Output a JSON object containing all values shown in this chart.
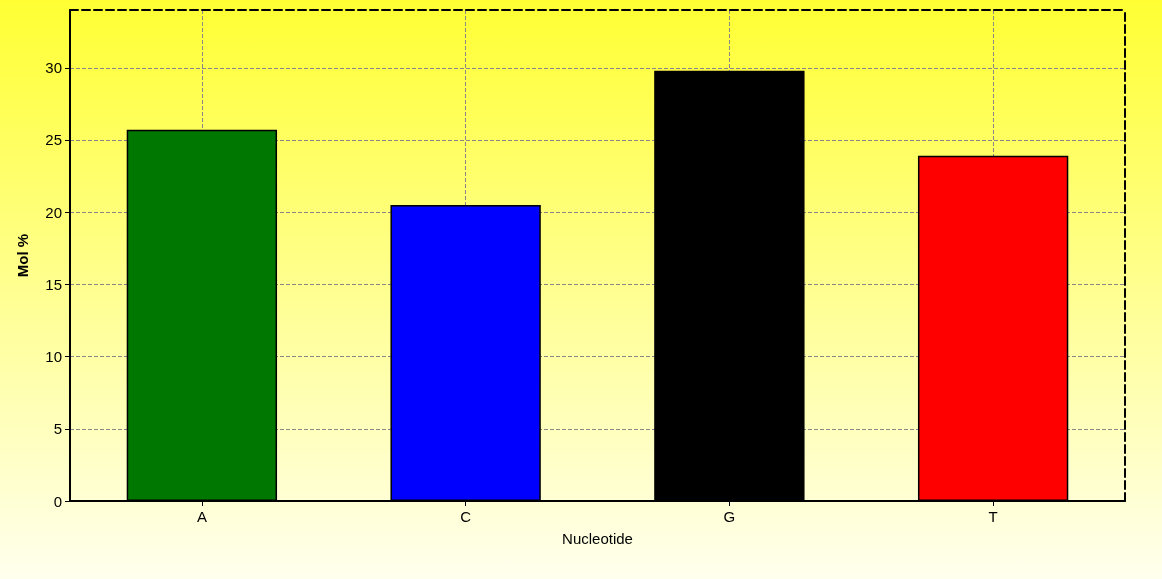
{
  "chart_data": {
    "type": "bar",
    "xlabel": "Nucleotide",
    "ylabel": "Mol %",
    "categories": [
      "A",
      "C",
      "G",
      "T"
    ],
    "values": [
      25.7,
      20.5,
      29.8,
      23.9
    ],
    "colors": [
      "#007700",
      "#0000ff",
      "#000000",
      "#ff0000"
    ],
    "ylim": [
      0,
      34
    ],
    "yticks": [
      0,
      5,
      10,
      15,
      20,
      25,
      30
    ],
    "grid": true
  }
}
